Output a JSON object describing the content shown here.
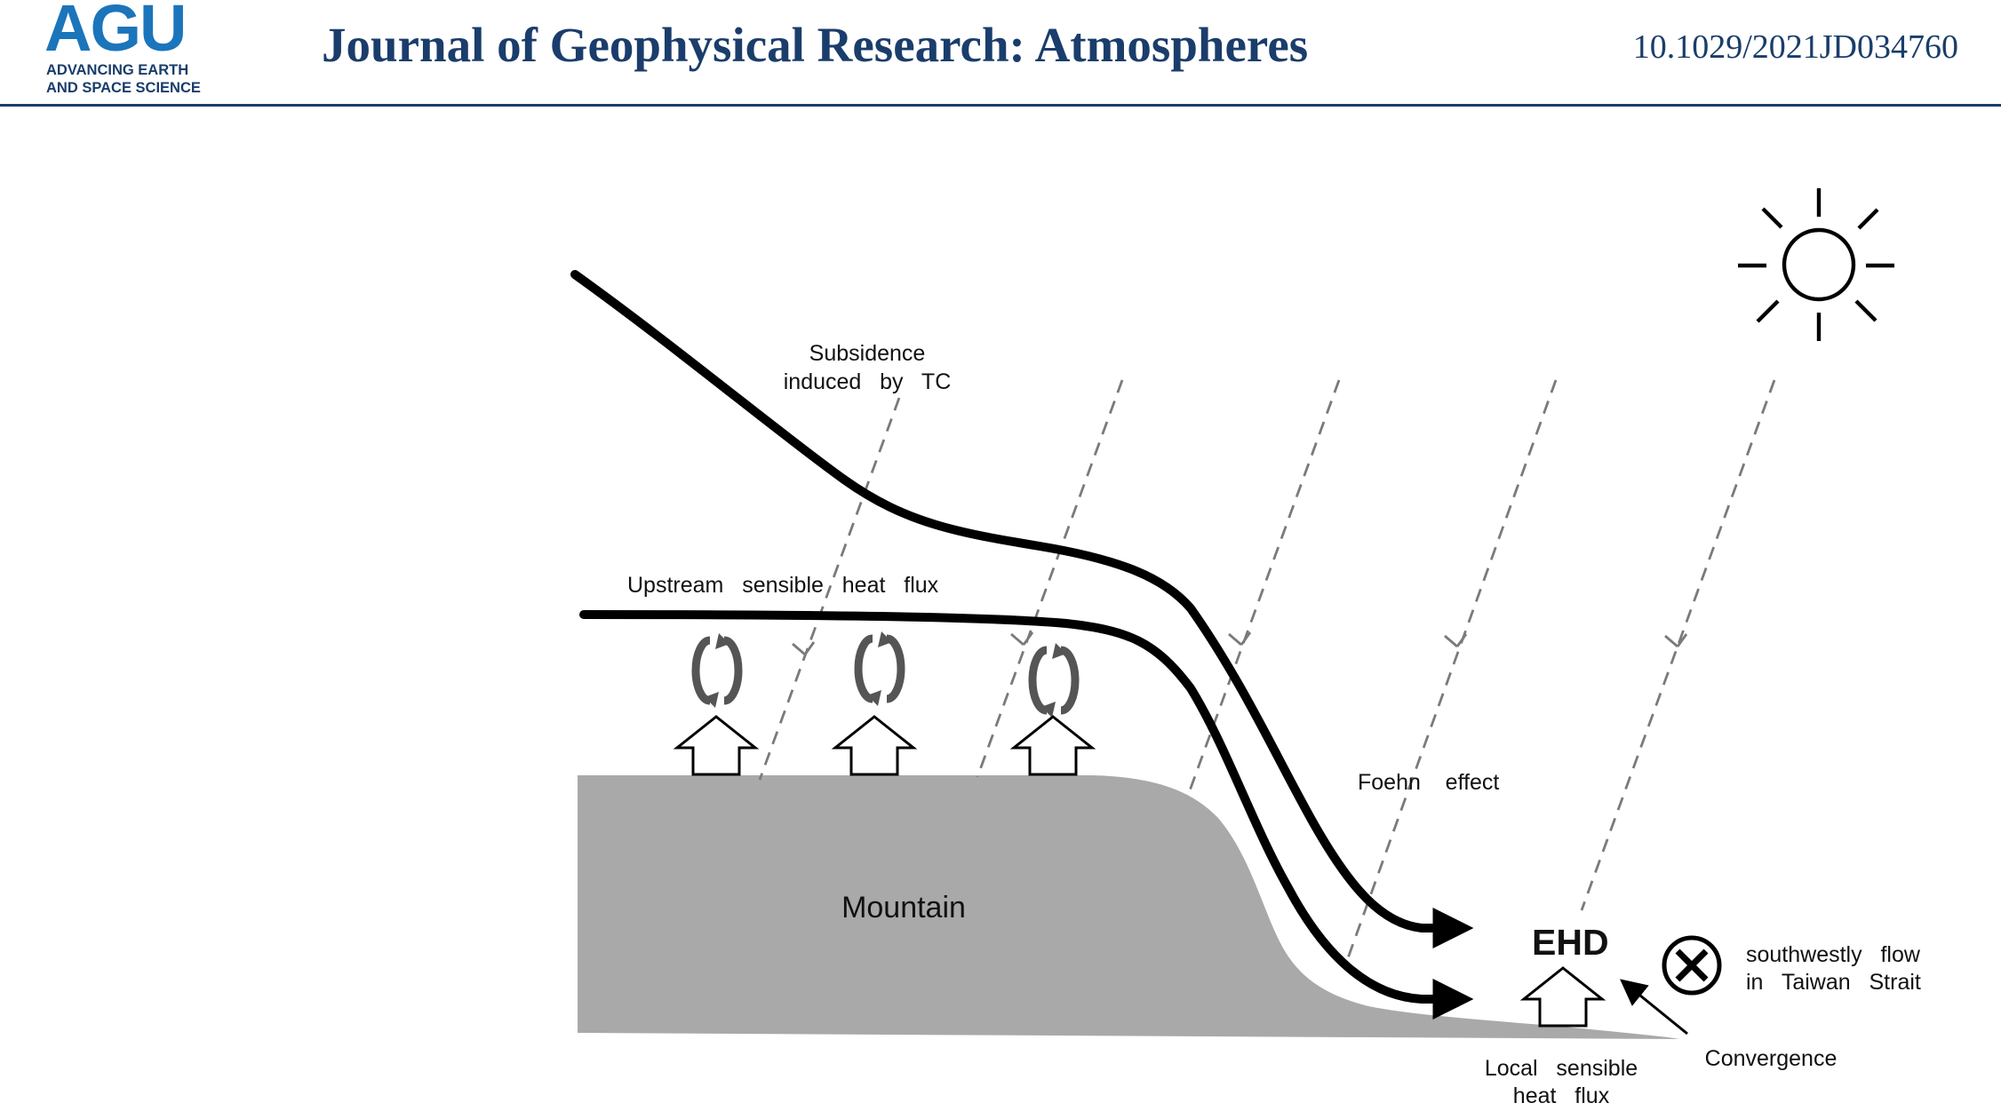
{
  "header": {
    "logo_text": "AGU",
    "logo_tagline_1": "ADVANCING EARTH",
    "logo_tagline_2": "AND SPACE SCIENCE",
    "journal_title": "Journal of Geophysical Research: Atmospheres",
    "doi": "10.1029/2021JD034760"
  },
  "diagram": {
    "subsidence_line1": "Subsidence",
    "subsidence_line2": "induced   by   TC",
    "upstream_label": "Upstream   sensible   heat   flux",
    "foehn_label": "Foehn    effect",
    "mountain_label": "Mountain",
    "ehd_label": "EHD",
    "flow_line1": "southwestly   flow",
    "flow_line2": "in   Taiwan   Strait",
    "local_flux_line1": "Local   sensible",
    "local_flux_line2": "heat   flux",
    "convergence_label": "Convergence"
  },
  "colors": {
    "header_blue": "#1a3d6b",
    "logo_blue": "#1b75bb",
    "mountain_fill": "#a9a9a9",
    "dashed_gray": "#7a7a7a"
  },
  "icons": [
    "sun-icon",
    "into-page-cross-icon",
    "heat-flux-arrow-icon",
    "eddy-rotation-icon"
  ]
}
